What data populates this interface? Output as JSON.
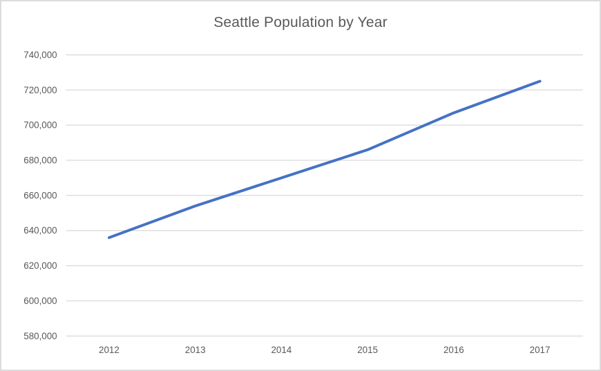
{
  "chart_data": {
    "type": "line",
    "title": "Seattle Population by Year",
    "categories": [
      "2012",
      "2013",
      "2014",
      "2015",
      "2016",
      "2017"
    ],
    "values": [
      636000,
      654000,
      670000,
      686000,
      707000,
      725000
    ],
    "xlabel": "",
    "ylabel": "",
    "ylim": [
      580000,
      740000
    ],
    "ytick_step": 20000,
    "y_tick_labels": [
      "580,000",
      "600,000",
      "620,000",
      "640,000",
      "660,000",
      "680,000",
      "700,000",
      "720,000",
      "740,000"
    ],
    "grid": "horizontal",
    "legend_position": "none",
    "line_color": "#4472C4",
    "gridline_color": "#D9D9D9",
    "axis_label_color": "#595959",
    "title_color": "#595959"
  }
}
